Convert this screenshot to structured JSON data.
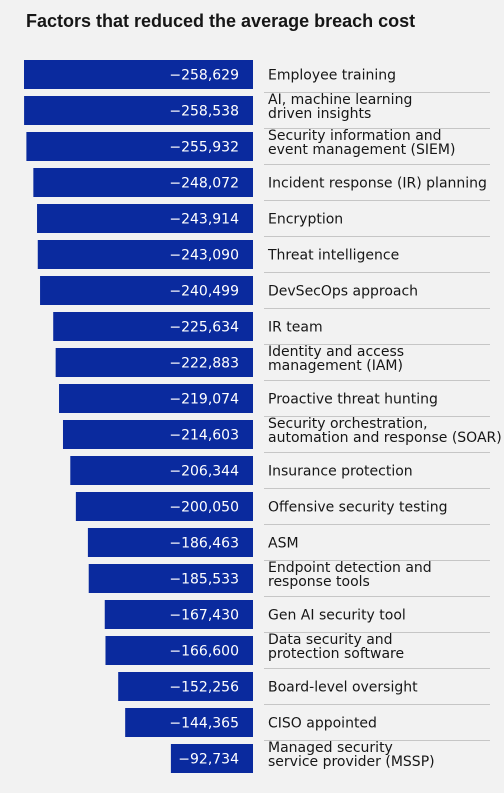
{
  "title": "Factors that reduced the average breach cost",
  "chart_data": {
    "type": "bar",
    "orientation": "horizontal",
    "title": "Factors that reduced the average breach cost",
    "bar_color": "#0a2a9e",
    "categories": [
      [
        "Employee training"
      ],
      [
        "AI, machine learning",
        "driven insights"
      ],
      [
        "Security information and",
        "event management (SIEM)"
      ],
      [
        "Incident response (IR) planning"
      ],
      [
        "Encryption"
      ],
      [
        "Threat intelligence"
      ],
      [
        "DevSecOps approach"
      ],
      [
        "IR team"
      ],
      [
        "Identity and access",
        "management (IAM)"
      ],
      [
        "Proactive threat hunting"
      ],
      [
        "Security orchestration,",
        "automation and response (SOAR)"
      ],
      [
        "Insurance protection"
      ],
      [
        "Offensive security testing"
      ],
      [
        "ASM"
      ],
      [
        "Endpoint detection and",
        "response tools"
      ],
      [
        "Gen AI security tool"
      ],
      [
        "Data security and",
        "protection software"
      ],
      [
        "Board-level oversight"
      ],
      [
        "CISO appointed"
      ],
      [
        "Managed security",
        "service provider (MSSP)"
      ]
    ],
    "values": [
      -258629,
      -258538,
      -255932,
      -248072,
      -243914,
      -243090,
      -240499,
      -225634,
      -222883,
      -219074,
      -214603,
      -206344,
      -200050,
      -186463,
      -185533,
      -167430,
      -166600,
      -152256,
      -144365,
      -92734
    ],
    "value_labels": [
      "−258,629",
      "−258,538",
      "−255,932",
      "−248,072",
      "−243,914",
      "−243,090",
      "−240,499",
      "−225,634",
      "−222,883",
      "−219,074",
      "−214,603",
      "−206,344",
      "−200,050",
      "−186,463",
      "−185,533",
      "−167,430",
      "−166,600",
      "−152,256",
      "−144,365",
      "−92,734"
    ]
  }
}
